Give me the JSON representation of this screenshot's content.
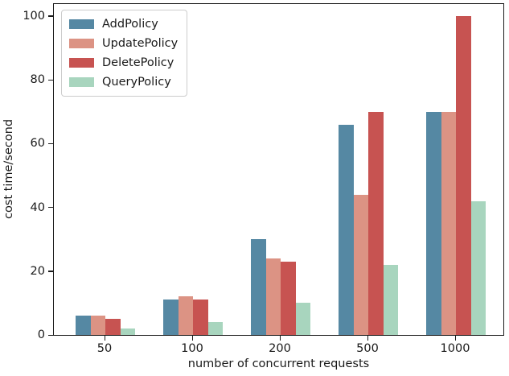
{
  "chart_data": {
    "type": "bar",
    "title": "",
    "xlabel": "number of concurrent requests",
    "ylabel": "cost time/second",
    "categories": [
      "50",
      "100",
      "200",
      "500",
      "1000"
    ],
    "series": [
      {
        "name": "AddPolicy",
        "color": "#5588a3",
        "values": [
          6,
          11,
          30,
          66,
          70
        ]
      },
      {
        "name": "UpdatePolicy",
        "color": "#dc9384",
        "values": [
          6,
          12,
          24,
          44,
          70
        ]
      },
      {
        "name": "DeletePolicy",
        "color": "#c75351",
        "values": [
          5,
          11,
          23,
          70,
          100
        ]
      },
      {
        "name": "QueryPolicy",
        "color": "#a8d5be",
        "values": [
          2,
          4,
          10,
          22,
          42
        ]
      }
    ],
    "yticks": [
      0,
      20,
      40,
      60,
      80,
      100
    ],
    "ylim": [
      0,
      104
    ],
    "grid": false,
    "legend_position": "upper left",
    "spine_color": "#1a1a1a",
    "background_color": "#ffffff"
  }
}
